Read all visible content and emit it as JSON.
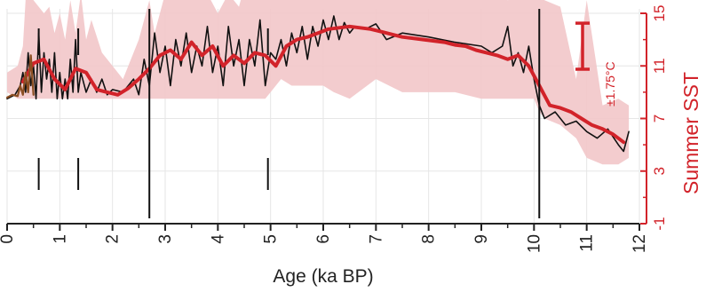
{
  "chart_data": {
    "type": "line",
    "xlabel": "Age (ka BP)",
    "ylabel": "Summer SST",
    "xlim": [
      0,
      12
    ],
    "ylim": [
      -1,
      15
    ],
    "x_ticks": [
      "0",
      "1",
      "2",
      "3",
      "4",
      "5",
      "6",
      "7",
      "8",
      "9",
      "10",
      "11",
      "12"
    ],
    "y_ticks": [
      "-1",
      "3",
      "7",
      "11",
      "15"
    ],
    "grid": true,
    "error_bar_label": "±1.75°C",
    "error_bar_halfwidth": 1.75,
    "colors": {
      "main": "#d2232a",
      "band": "#f2c6c9",
      "raw": "#111111",
      "brown": "#8b4e22",
      "grid": "#e6e6e6",
      "axis": "#d2232a"
    },
    "band": {
      "x": [
        0,
        0.2,
        0.3,
        0.35,
        0.4,
        0.5,
        0.6,
        0.7,
        0.8,
        0.9,
        1.0,
        1.1,
        1.2,
        1.3,
        1.4,
        1.5,
        1.6,
        1.8,
        2.0,
        2.2,
        2.4,
        2.5,
        2.6,
        2.7,
        2.8,
        3.0,
        3.2,
        3.4,
        3.6,
        3.8,
        4.0,
        4.2,
        4.4,
        4.6,
        4.8,
        4.9,
        5.0,
        5.2,
        5.4,
        5.6,
        5.8,
        6.0,
        6.2,
        6.5,
        7.0,
        7.5,
        8.0,
        8.5,
        9.0,
        9.5,
        10.0,
        10.1,
        10.2,
        10.5,
        10.8,
        11.0,
        11.3,
        11.6,
        11.8
      ],
      "upper": [
        10.5,
        11,
        12.5,
        16,
        18.5,
        16,
        15.5,
        15,
        15.5,
        13.5,
        15,
        13,
        16,
        13.5,
        16.5,
        13,
        14.5,
        12,
        11,
        10,
        12,
        13,
        14.5,
        16,
        13.5,
        16.5,
        17.5,
        18,
        19.5,
        16.5,
        15,
        16.5,
        15.5,
        18.5,
        19.2,
        17.2,
        18,
        18.5,
        16.5,
        17.5,
        17.5,
        17.5,
        17.5,
        17.5,
        17.5,
        17.5,
        17,
        16.5,
        17,
        16,
        16.5,
        17,
        16,
        15.5,
        10,
        16,
        8,
        8.5,
        8
      ],
      "lower": [
        9,
        8.5,
        8.5,
        8.5,
        8.5,
        8.5,
        8.5,
        8.5,
        8.5,
        8.5,
        8.5,
        8.5,
        8.5,
        8.5,
        8.5,
        8.5,
        8.5,
        8.5,
        8.5,
        8.5,
        8.5,
        8.5,
        8.5,
        8.5,
        8.5,
        8.5,
        8.5,
        8.5,
        8.5,
        8.5,
        8.5,
        8.5,
        8.5,
        8.5,
        8.5,
        8.5,
        9,
        10,
        9.5,
        9.5,
        9.5,
        9.5,
        9,
        8.5,
        10,
        9,
        9,
        9,
        8.5,
        8.5,
        8.5,
        7.5,
        7,
        6.5,
        5.5,
        4,
        3.5,
        3.5,
        4
      ]
    },
    "series": [
      {
        "values_x": [
          0,
          0.15,
          0.25,
          0.3,
          0.35,
          0.4,
          0.45,
          0.5,
          0.55,
          0.6,
          0.65,
          0.7,
          0.75,
          0.8,
          0.85,
          0.9,
          0.95,
          1.0,
          1.05,
          1.1,
          1.15,
          1.2,
          1.25,
          1.3,
          1.35,
          1.4,
          1.5,
          1.6,
          1.7,
          1.8,
          1.9,
          2.0,
          2.2,
          2.4,
          2.5,
          2.6,
          2.7,
          2.8,
          2.9,
          3.0,
          3.1,
          3.2,
          3.3,
          3.4,
          3.5,
          3.6,
          3.7,
          3.8,
          3.9,
          4.0,
          4.1,
          4.2,
          4.3,
          4.4,
          4.5,
          4.6,
          4.7,
          4.8,
          4.9,
          5.0,
          5.1,
          5.2,
          5.3,
          5.4,
          5.5,
          5.6,
          5.7,
          5.8,
          5.9,
          6.0,
          6.1,
          6.2,
          6.3,
          6.4,
          6.5,
          6.6,
          6.8,
          7.0,
          7.2,
          7.5,
          8.0,
          8.5,
          9.0,
          9.2,
          9.4,
          9.5,
          9.6,
          9.7,
          9.8,
          9.9,
          10.0,
          10.1,
          10.2,
          10.4,
          10.6,
          10.8,
          11.0,
          11.2,
          11.4,
          11.6,
          11.7,
          11.8
        ],
        "values_y": [
          8.5,
          8.8,
          9.5,
          10.5,
          9.0,
          12.0,
          9.5,
          11.0,
          8.5,
          13.5,
          9.0,
          12.0,
          10.0,
          11.5,
          9.0,
          12.0,
          8.5,
          10.5,
          8.5,
          10.0,
          8.5,
          11.5,
          9.0,
          13.0,
          9.0,
          10.5,
          9.0,
          10.0,
          9.0,
          10.0,
          8.8,
          9.2,
          9.0,
          10.0,
          8.8,
          11.5,
          9.5,
          13.5,
          10.5,
          12.5,
          9.5,
          13.0,
          11.0,
          13.5,
          10.5,
          12.5,
          11.0,
          14.0,
          10.5,
          12.5,
          9.5,
          14.0,
          11.0,
          13.0,
          9.5,
          13.0,
          11.0,
          14.5,
          9.5,
          12.0,
          11.5,
          13.0,
          11.0,
          13.5,
          12.0,
          14.0,
          11.5,
          14.0,
          12.5,
          14.5,
          13.0,
          14.8,
          13.0,
          14.3,
          13.5,
          14.0,
          13.8,
          14.2,
          13.0,
          13.5,
          13.2,
          12.8,
          12.5,
          12.0,
          12.5,
          14.0,
          11.0,
          12.0,
          10.5,
          12.5,
          10.0,
          8.0,
          7.0,
          7.5,
          6.5,
          6.8,
          6.0,
          5.5,
          6.2,
          5.0,
          4.5,
          6.0
        ]
      },
      {
        "values_x": [
          0.3,
          0.5,
          0.7,
          0.9,
          1.1,
          1.3,
          1.5,
          1.7,
          1.9,
          2.1,
          2.3,
          2.5,
          2.7,
          2.9,
          3.1,
          3.3,
          3.5,
          3.7,
          3.9,
          4.1,
          4.3,
          4.5,
          4.7,
          4.9,
          5.1,
          5.3,
          5.5,
          5.7,
          5.9,
          6.1,
          6.3,
          6.5,
          6.7,
          6.9,
          7.1,
          7.3,
          7.5,
          7.7,
          7.9,
          8.1,
          8.3,
          8.5,
          8.7,
          8.9,
          9.1,
          9.3,
          9.5,
          9.7,
          9.9,
          10.1,
          10.3,
          10.5,
          10.7,
          10.9,
          11.1,
          11.3,
          11.5,
          11.7
        ],
        "values_y": [
          9.8,
          11.2,
          11.5,
          10.0,
          9.2,
          10.8,
          10.5,
          9.2,
          9.0,
          8.8,
          9.3,
          10.0,
          10.8,
          11.8,
          12.2,
          11.5,
          12.8,
          11.8,
          12.5,
          11.0,
          11.8,
          11.2,
          12.0,
          11.8,
          11.0,
          12.5,
          13.0,
          13.2,
          13.5,
          13.8,
          13.9,
          14.0,
          13.9,
          13.8,
          13.6,
          13.4,
          13.2,
          13.1,
          13.0,
          12.9,
          12.8,
          12.6,
          12.5,
          12.2,
          12.0,
          11.8,
          11.5,
          11.8,
          11.0,
          9.5,
          8.0,
          7.8,
          7.5,
          7.0,
          6.5,
          6.2,
          5.8,
          5.2
        ]
      },
      {
        "values_x": [
          0,
          0.1,
          0.2,
          0.25,
          0.3,
          0.35,
          0.4,
          0.45,
          0.5
        ],
        "values_y": [
          8.6,
          8.8,
          8.7,
          9.5,
          8.8,
          10.5,
          9.0,
          11.8,
          8.8
        ]
      }
    ],
    "vertical_lines": [
      {
        "x": 0.6,
        "style": "segments"
      },
      {
        "x": 1.35,
        "style": "segments"
      },
      {
        "x": 2.7,
        "style": "full"
      },
      {
        "x": 4.95,
        "style": "segments"
      },
      {
        "x": 10.1,
        "style": "full"
      }
    ]
  }
}
